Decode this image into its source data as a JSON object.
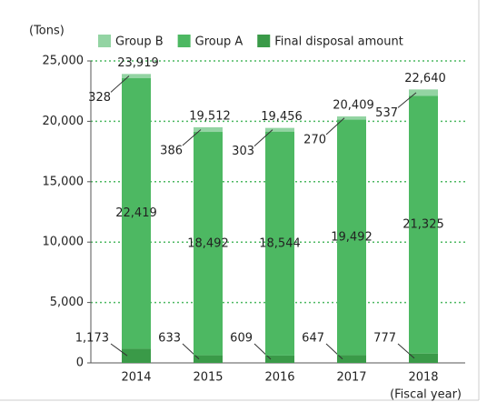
{
  "chart_data": {
    "type": "stacked_bar",
    "y_unit": "(Tons)",
    "x_unit": "(Fiscal year)",
    "categories": [
      "2014",
      "2015",
      "2016",
      "2017",
      "2018"
    ],
    "series": [
      {
        "name": "Final disposal amount",
        "color": "#3a9a48",
        "values": [
          1173,
          633,
          609,
          647,
          777
        ],
        "value_labels": [
          "1,173",
          "633",
          "609",
          "647",
          "777"
        ]
      },
      {
        "name": "Group A",
        "color": "#4db862",
        "values": [
          22419,
          18492,
          18544,
          19492,
          21325
        ],
        "value_labels": [
          "22,419",
          "18,492",
          "18,544",
          "19,492",
          "21,325"
        ]
      },
      {
        "name": "Group B",
        "color": "#93d4a3",
        "values": [
          328,
          386,
          303,
          270,
          537
        ]
      }
    ],
    "legend_order": [
      2,
      1,
      0
    ],
    "totals": [
      23919,
      19512,
      19456,
      20409,
      22640
    ],
    "total_labels": [
      "23,919",
      "19,512",
      "19,456",
      "20,409",
      "22,640"
    ],
    "ylim": [
      0,
      25000
    ],
    "yticks": [
      0,
      {
        "value": 5000,
        "label": "5,000"
      },
      {
        "value": 10000,
        "label": "10,000"
      },
      {
        "value": 15000,
        "label": "15,000"
      },
      {
        "value": 20000,
        "label": "20,000"
      },
      {
        "value": 25000,
        "label": "25,000"
      }
    ],
    "grid": true,
    "legend": "top"
  }
}
